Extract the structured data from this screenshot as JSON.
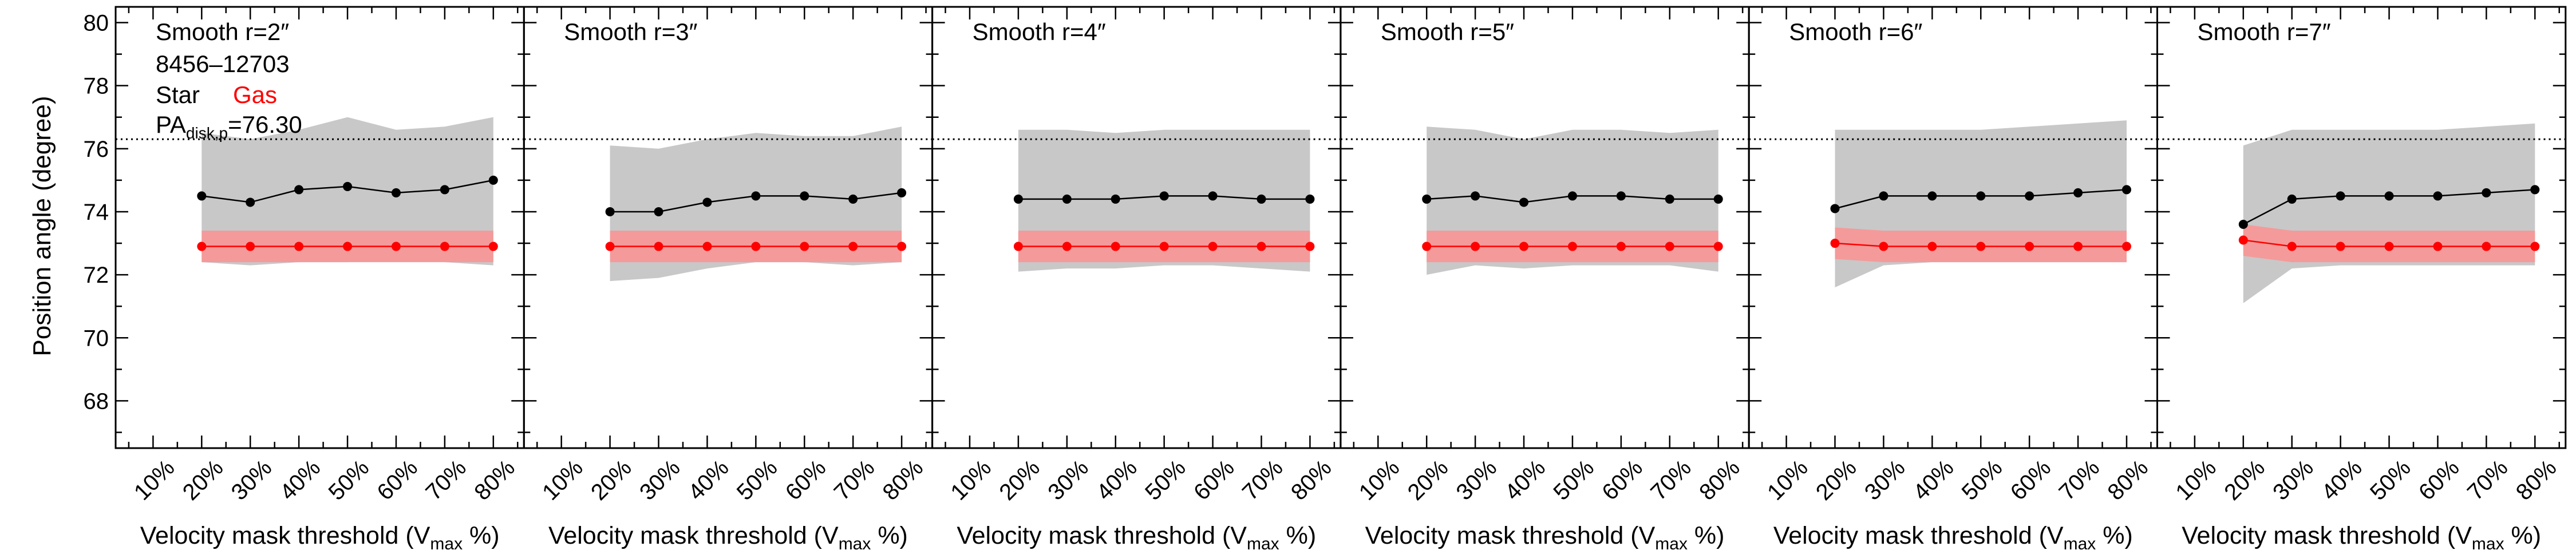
{
  "figure": {
    "ylabel": "Position angle (degree)",
    "xlabel_pre": "Velocity mask threshold (V",
    "xlabel_sub": "max",
    "xlabel_post": " %)",
    "galaxy_id": "8456–12703",
    "legend_star": "Star",
    "legend_gas": "Gas",
    "pa_label_main": "PA",
    "pa_label_sub": "disk,p",
    "pa_label_value": "=76.30"
  },
  "colors": {
    "star": "#000000",
    "gas": "#ff0000",
    "star_band": "#c8c8c8",
    "gas_band": "#f49a9a",
    "reference_line": "#000000"
  },
  "chart_data": [
    {
      "type": "line",
      "title": "Smooth r=2″",
      "categories": [
        "10%",
        "20%",
        "30%",
        "40%",
        "50%",
        "60%",
        "70%",
        "80%"
      ],
      "ylim": [
        66.5,
        80.5
      ],
      "yticks": [
        68,
        70,
        72,
        74,
        76,
        78,
        80
      ],
      "reference_y": 76.3,
      "series": [
        {
          "name": "Star",
          "x": [
            20,
            30,
            40,
            50,
            60,
            70,
            80
          ],
          "values": [
            74.5,
            74.3,
            74.7,
            74.8,
            74.6,
            74.7,
            75.0
          ],
          "band_upper": [
            76.5,
            76.3,
            76.6,
            77.0,
            76.6,
            76.7,
            77.0
          ],
          "band_lower": [
            72.4,
            72.3,
            72.4,
            72.4,
            72.5,
            72.4,
            72.3
          ]
        },
        {
          "name": "Gas",
          "x": [
            20,
            30,
            40,
            50,
            60,
            70,
            80
          ],
          "values": [
            72.9,
            72.9,
            72.9,
            72.9,
            72.9,
            72.9,
            72.9
          ],
          "band_upper": [
            73.4,
            73.4,
            73.4,
            73.4,
            73.4,
            73.4,
            73.4
          ],
          "band_lower": [
            72.4,
            72.4,
            72.4,
            72.4,
            72.4,
            72.4,
            72.4
          ]
        }
      ]
    },
    {
      "type": "line",
      "title": "Smooth r=3″",
      "categories": [
        "10%",
        "20%",
        "30%",
        "40%",
        "50%",
        "60%",
        "70%",
        "80%"
      ],
      "ylim": [
        66.5,
        80.5
      ],
      "yticks": [
        68,
        70,
        72,
        74,
        76,
        78,
        80
      ],
      "reference_y": 76.3,
      "series": [
        {
          "name": "Star",
          "x": [
            20,
            30,
            40,
            50,
            60,
            70,
            80
          ],
          "values": [
            74.0,
            74.0,
            74.3,
            74.5,
            74.5,
            74.4,
            74.6
          ],
          "band_upper": [
            76.1,
            76.0,
            76.3,
            76.5,
            76.4,
            76.4,
            76.7
          ],
          "band_lower": [
            71.8,
            71.9,
            72.2,
            72.4,
            72.4,
            72.3,
            72.4
          ]
        },
        {
          "name": "Gas",
          "x": [
            20,
            30,
            40,
            50,
            60,
            70,
            80
          ],
          "values": [
            72.9,
            72.9,
            72.9,
            72.9,
            72.9,
            72.9,
            72.9
          ],
          "band_upper": [
            73.4,
            73.4,
            73.4,
            73.4,
            73.4,
            73.4,
            73.4
          ],
          "band_lower": [
            72.4,
            72.4,
            72.4,
            72.4,
            72.4,
            72.4,
            72.4
          ]
        }
      ]
    },
    {
      "type": "line",
      "title": "Smooth r=4″",
      "categories": [
        "10%",
        "20%",
        "30%",
        "40%",
        "50%",
        "60%",
        "70%",
        "80%"
      ],
      "ylim": [
        66.5,
        80.5
      ],
      "yticks": [
        68,
        70,
        72,
        74,
        76,
        78,
        80
      ],
      "reference_y": 76.3,
      "series": [
        {
          "name": "Star",
          "x": [
            20,
            30,
            40,
            50,
            60,
            70,
            80
          ],
          "values": [
            74.4,
            74.4,
            74.4,
            74.5,
            74.5,
            74.4,
            74.4
          ],
          "band_upper": [
            76.6,
            76.6,
            76.5,
            76.6,
            76.6,
            76.6,
            76.6
          ],
          "band_lower": [
            72.1,
            72.2,
            72.2,
            72.3,
            72.3,
            72.2,
            72.1
          ]
        },
        {
          "name": "Gas",
          "x": [
            20,
            30,
            40,
            50,
            60,
            70,
            80
          ],
          "values": [
            72.9,
            72.9,
            72.9,
            72.9,
            72.9,
            72.9,
            72.9
          ],
          "band_upper": [
            73.4,
            73.4,
            73.4,
            73.4,
            73.4,
            73.4,
            73.4
          ],
          "band_lower": [
            72.4,
            72.4,
            72.4,
            72.4,
            72.4,
            72.4,
            72.4
          ]
        }
      ]
    },
    {
      "type": "line",
      "title": "Smooth r=5″",
      "categories": [
        "10%",
        "20%",
        "30%",
        "40%",
        "50%",
        "60%",
        "70%",
        "80%"
      ],
      "ylim": [
        66.5,
        80.5
      ],
      "yticks": [
        68,
        70,
        72,
        74,
        76,
        78,
        80
      ],
      "reference_y": 76.3,
      "series": [
        {
          "name": "Star",
          "x": [
            20,
            30,
            40,
            50,
            60,
            70,
            80
          ],
          "values": [
            74.4,
            74.5,
            74.3,
            74.5,
            74.5,
            74.4,
            74.4
          ],
          "band_upper": [
            76.7,
            76.6,
            76.3,
            76.6,
            76.6,
            76.5,
            76.6
          ],
          "band_lower": [
            72.0,
            72.3,
            72.2,
            72.3,
            72.3,
            72.3,
            72.1
          ]
        },
        {
          "name": "Gas",
          "x": [
            20,
            30,
            40,
            50,
            60,
            70,
            80
          ],
          "values": [
            72.9,
            72.9,
            72.9,
            72.9,
            72.9,
            72.9,
            72.9
          ],
          "band_upper": [
            73.4,
            73.4,
            73.4,
            73.4,
            73.4,
            73.4,
            73.4
          ],
          "band_lower": [
            72.4,
            72.4,
            72.4,
            72.4,
            72.4,
            72.4,
            72.4
          ]
        }
      ]
    },
    {
      "type": "line",
      "title": "Smooth r=6″",
      "categories": [
        "10%",
        "20%",
        "30%",
        "40%",
        "50%",
        "60%",
        "70%",
        "80%"
      ],
      "ylim": [
        66.5,
        80.5
      ],
      "yticks": [
        68,
        70,
        72,
        74,
        76,
        78,
        80
      ],
      "reference_y": 76.3,
      "series": [
        {
          "name": "Star",
          "x": [
            20,
            30,
            40,
            50,
            60,
            70,
            80
          ],
          "values": [
            74.1,
            74.5,
            74.5,
            74.5,
            74.5,
            74.6,
            74.7
          ],
          "band_upper": [
            76.6,
            76.6,
            76.6,
            76.6,
            76.7,
            76.8,
            76.9
          ],
          "band_lower": [
            71.6,
            72.3,
            72.4,
            72.4,
            72.4,
            72.4,
            72.4
          ]
        },
        {
          "name": "Gas",
          "x": [
            20,
            30,
            40,
            50,
            60,
            70,
            80
          ],
          "values": [
            73.0,
            72.9,
            72.9,
            72.9,
            72.9,
            72.9,
            72.9
          ],
          "band_upper": [
            73.5,
            73.4,
            73.4,
            73.4,
            73.4,
            73.4,
            73.4
          ],
          "band_lower": [
            72.5,
            72.4,
            72.4,
            72.4,
            72.4,
            72.4,
            72.4
          ]
        }
      ]
    },
    {
      "type": "line",
      "title": "Smooth r=7″",
      "categories": [
        "10%",
        "20%",
        "30%",
        "40%",
        "50%",
        "60%",
        "70%",
        "80%"
      ],
      "ylim": [
        66.5,
        80.5
      ],
      "yticks": [
        68,
        70,
        72,
        74,
        76,
        78,
        80
      ],
      "reference_y": 76.3,
      "series": [
        {
          "name": "Star",
          "x": [
            20,
            30,
            40,
            50,
            60,
            70,
            80
          ],
          "values": [
            73.6,
            74.4,
            74.5,
            74.5,
            74.5,
            74.6,
            74.7
          ],
          "band_upper": [
            76.1,
            76.6,
            76.6,
            76.6,
            76.6,
            76.7,
            76.8
          ],
          "band_lower": [
            71.1,
            72.2,
            72.3,
            72.3,
            72.3,
            72.3,
            72.3
          ]
        },
        {
          "name": "Gas",
          "x": [
            20,
            30,
            40,
            50,
            60,
            70,
            80
          ],
          "values": [
            73.1,
            72.9,
            72.9,
            72.9,
            72.9,
            72.9,
            72.9
          ],
          "band_upper": [
            73.6,
            73.4,
            73.4,
            73.4,
            73.4,
            73.4,
            73.4
          ],
          "band_lower": [
            72.6,
            72.4,
            72.4,
            72.4,
            72.4,
            72.4,
            72.4
          ]
        }
      ]
    }
  ]
}
